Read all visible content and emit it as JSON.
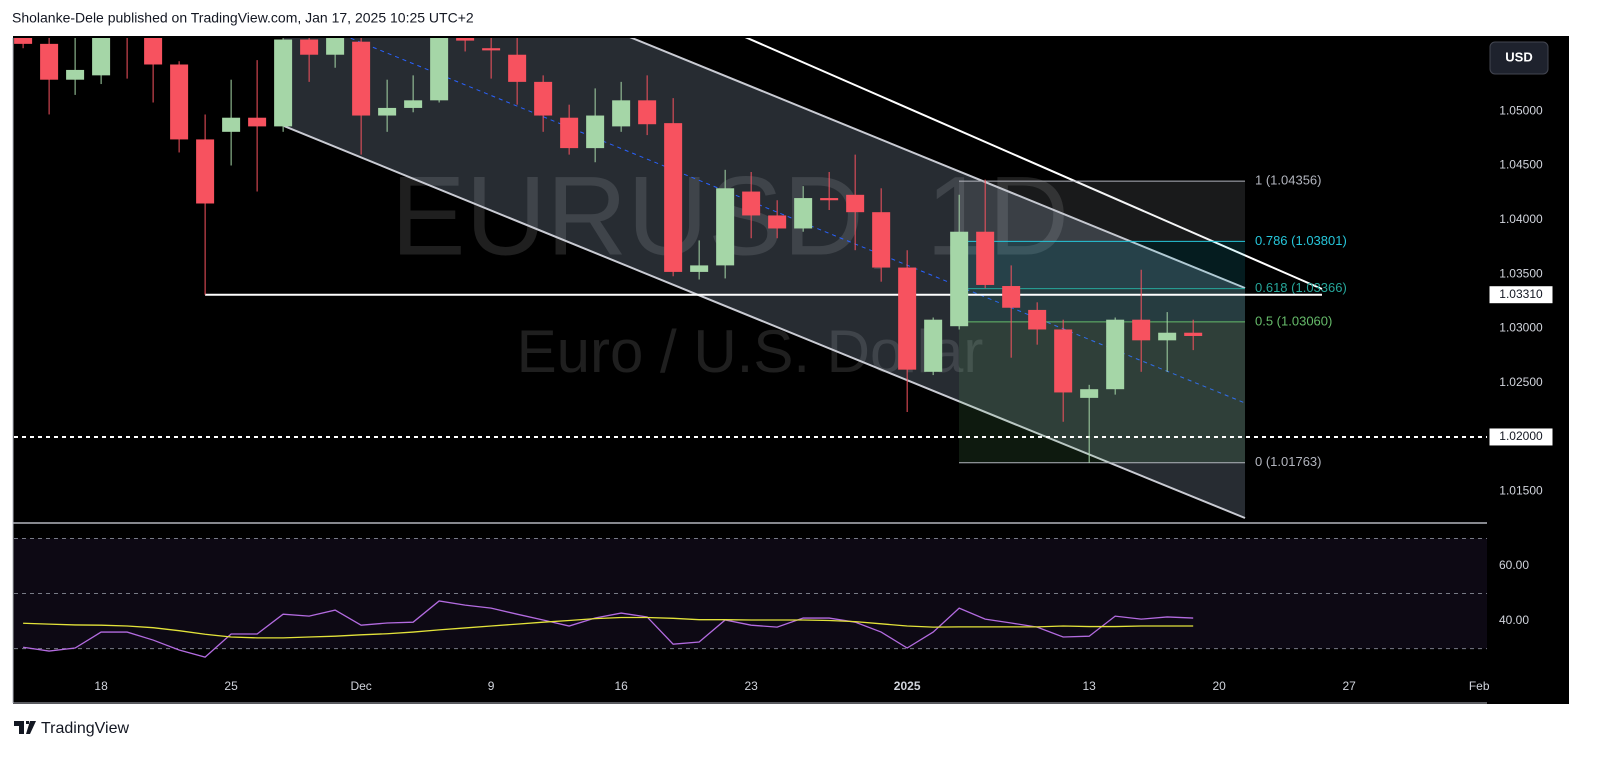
{
  "header": {
    "publisher": "Sholanke-Dele published on TradingView.com, Jan 17, 2025 10:25 UTC+2"
  },
  "currency_button": "USD",
  "footer": {
    "brand": "TradingView"
  },
  "chart_data": [
    {
      "type": "candlestick",
      "watermark": {
        "symbol": "EURUSD, 1D",
        "description": "Euro / U.S. Dollar"
      },
      "x": [
        0,
        1,
        2,
        3,
        4,
        5,
        6,
        7,
        8,
        9,
        10,
        11,
        12,
        13,
        14,
        15,
        16,
        17,
        18,
        19,
        20,
        21,
        22,
        23,
        24,
        25,
        26,
        27,
        28,
        29,
        30,
        31,
        32,
        33,
        34,
        35,
        36,
        37,
        38,
        39,
        40,
        41,
        42,
        43,
        44,
        45
      ],
      "open": [
        1.057,
        1.0562,
        1.0529,
        1.0533,
        1.059,
        1.057,
        1.0543,
        1.0474,
        1.0481,
        1.0494,
        1.0486,
        1.0566,
        1.0552,
        1.0564,
        1.0496,
        1.0503,
        1.051,
        1.058,
        1.0558,
        1.0552,
        1.0527,
        1.0494,
        1.0466,
        1.0486,
        1.051,
        1.0489,
        1.0352,
        1.0358,
        1.0426,
        1.0404,
        1.0392,
        1.042,
        1.0423,
        1.0407,
        1.0356,
        1.026,
        1.0302,
        1.0389,
        1.0339,
        1.0317,
        1.0299,
        1.0236,
        1.0244,
        1.0308,
        1.0289,
        1.0296
      ],
      "high": [
        1.0575,
        1.057,
        1.058,
        1.06,
        1.06,
        1.058,
        1.0546,
        1.0497,
        1.0529,
        1.0547,
        1.058,
        1.0575,
        1.0585,
        1.058,
        1.0529,
        1.0533,
        1.06,
        1.061,
        1.0575,
        1.057,
        1.0533,
        1.0506,
        1.0521,
        1.0527,
        1.0533,
        1.0512,
        1.0381,
        1.0446,
        1.0444,
        1.0418,
        1.0431,
        1.0444,
        1.046,
        1.0429,
        1.0372,
        1.031,
        1.0423,
        1.0437,
        1.0358,
        1.0324,
        1.0308,
        1.0248,
        1.031,
        1.0354,
        1.0315,
        1.0308
      ],
      "low": [
        1.0558,
        1.0497,
        1.0515,
        1.0525,
        1.053,
        1.0508,
        1.0462,
        1.0331,
        1.045,
        1.0426,
        1.0481,
        1.0527,
        1.054,
        1.046,
        1.0481,
        1.0499,
        1.0508,
        1.0555,
        1.053,
        1.0506,
        1.0481,
        1.046,
        1.0453,
        1.0481,
        1.0478,
        1.0348,
        1.0345,
        1.0346,
        1.0383,
        1.0383,
        1.0389,
        1.0409,
        1.0372,
        1.0343,
        1.0223,
        1.0257,
        1.0299,
        1.0337,
        1.0273,
        1.0285,
        1.0214,
        1.01763,
        1.0239,
        1.026,
        1.026,
        1.028
      ],
      "close": [
        1.0562,
        1.0529,
        1.0538,
        1.057,
        1.0575,
        1.0543,
        1.0474,
        1.0415,
        1.0494,
        1.0486,
        1.0566,
        1.0552,
        1.057,
        1.0496,
        1.0503,
        1.051,
        1.058,
        1.0565,
        1.0556,
        1.0527,
        1.0496,
        1.0466,
        1.0496,
        1.051,
        1.0488,
        1.0352,
        1.0358,
        1.0429,
        1.0404,
        1.0392,
        1.042,
        1.0418,
        1.0407,
        1.0356,
        1.0262,
        1.0308,
        1.0389,
        1.034,
        1.0319,
        1.0299,
        1.0241,
        1.0244,
        1.0308,
        1.0289,
        1.0296,
        1.0293
      ],
      "up_color": "#a5d6a7",
      "down_color": "#f7525f",
      "xlim": [
        -0.35,
        56.3
      ],
      "xticks": [
        {
          "value": 3,
          "label": "18"
        },
        {
          "value": 8,
          "label": "25"
        },
        {
          "value": 13,
          "label": "Dec"
        },
        {
          "value": 18,
          "label": "9"
        },
        {
          "value": 23,
          "label": "16"
        },
        {
          "value": 28,
          "label": "23"
        },
        {
          "value": 34,
          "label": "2025"
        },
        {
          "value": 41,
          "label": "13"
        },
        {
          "value": 46,
          "label": "20"
        },
        {
          "value": 51,
          "label": "27"
        },
        {
          "value": 56,
          "label": "Feb"
        }
      ],
      "ylim": [
        1.01217,
        1.05674
      ],
      "yticks": [
        {
          "value": 1.05,
          "label": "1.05000"
        },
        {
          "value": 1.045,
          "label": "1.04500"
        },
        {
          "value": 1.04,
          "label": "1.04000"
        },
        {
          "value": 1.035,
          "label": "1.03500"
        },
        {
          "value": 1.03,
          "label": "1.03000"
        },
        {
          "value": 1.025,
          "label": "1.02500"
        },
        {
          "value": 1.02,
          "label": "1.02000"
        },
        {
          "value": 1.015,
          "label": "1.01500"
        }
      ],
      "grid": false,
      "price_lines": [
        {
          "value": 1.0331,
          "label": "1.03310",
          "style": "solid"
        },
        {
          "value": 1.02,
          "label": "1.02000",
          "style": "dashed"
        }
      ],
      "fib_levels": [
        {
          "value": 1.04356,
          "label": "1 (1.04356)",
          "color": "#b2b5be"
        },
        {
          "value": 1.03801,
          "label": "0.786 (1.03801)",
          "color": "#26c6da"
        },
        {
          "value": 1.03366,
          "label": "0.618 (1.03366)",
          "color": "#26a69a"
        },
        {
          "value": 1.0306,
          "label": "0.5 (1.03060)",
          "color": "#66bb6a"
        },
        {
          "value": 1.01763,
          "label": "0 (1.01763)",
          "color": "#b2b5be"
        }
      ]
    },
    {
      "type": "line",
      "series": [
        {
          "color": "#b36be0",
          "values": [
            30.5,
            29.1,
            30.2,
            36.0,
            36.0,
            33.1,
            29.5,
            26.9,
            35.3,
            35.3,
            42.5,
            41.8,
            44.0,
            38.5,
            39.3,
            39.6,
            47.3,
            45.8,
            44.7,
            42.5,
            40.4,
            38.2,
            41.1,
            42.9,
            41.5,
            31.6,
            32.4,
            40.4,
            38.5,
            37.8,
            41.1,
            41.1,
            39.6,
            36.0,
            30.2,
            36.0,
            44.7,
            40.7,
            39.3,
            37.8,
            34.2,
            34.5,
            41.8,
            40.7,
            41.5,
            41.1
          ]
        },
        {
          "color": "#e3e33a",
          "values": [
            39.2,
            38.9,
            38.6,
            38.5,
            38.2,
            37.6,
            36.5,
            35.2,
            34.2,
            33.9,
            33.9,
            34.2,
            34.5,
            35.0,
            35.4,
            36.0,
            36.8,
            37.5,
            38.2,
            38.9,
            39.6,
            40.2,
            40.9,
            41.3,
            41.3,
            41.0,
            40.5,
            40.5,
            40.4,
            40.4,
            40.4,
            40.2,
            39.8,
            39.0,
            38.2,
            37.8,
            37.9,
            37.9,
            37.9,
            37.9,
            38.2,
            38.0,
            38.0,
            38.2,
            38.2,
            38.2
          ]
        }
      ],
      "ylim": [
        20.4,
        73.1
      ],
      "yticks": [
        {
          "value": 60,
          "label": "60.00"
        },
        {
          "value": 40,
          "label": "40.00"
        }
      ],
      "levels": [
        70,
        50,
        30
      ]
    }
  ]
}
